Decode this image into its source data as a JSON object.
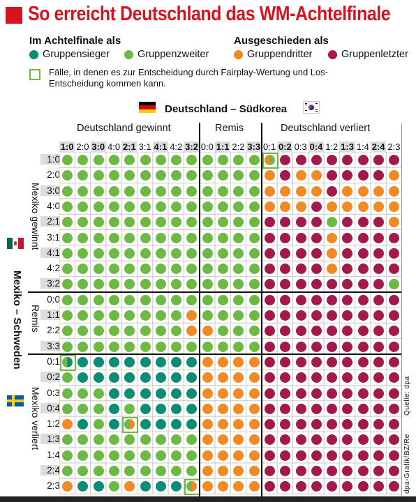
{
  "title": "So erreicht Deutschland das WM-Achtelfinale",
  "legend": {
    "in_heading": "Im Achtelfinale als",
    "out_heading": "Ausgeschieden als",
    "items": [
      {
        "label": "Gruppensieger",
        "color": "#0b8c74"
      },
      {
        "label": "Gruppenzweiter",
        "color": "#6cb944"
      },
      {
        "label": "Gruppendritter",
        "color": "#f08a24"
      },
      {
        "label": "Gruppenletzter",
        "color": "#a2194b"
      }
    ],
    "fairplay_text": "Fälle, in denen es zur Entscheidung durch Fairplay-Wertung und Los-Entscheidung kommen kann."
  },
  "match_top": "Deutschland – Südkorea",
  "match_side": "Mexiko – Schweden",
  "column_groups": [
    "Deutschland gewinnt",
    "Remis",
    "Deutschland verliert"
  ],
  "row_groups": [
    "Mexiko gewinnt",
    "Remis",
    "Mexiko verliert"
  ],
  "columns": [
    "1:0",
    "2:0",
    "3:0",
    "4:0",
    "2:1",
    "3:1",
    "4:1",
    "4:2",
    "3:2",
    "0:0",
    "1:1",
    "2:2",
    "3:3",
    "0:1",
    "0:2",
    "0:3",
    "0:4",
    "1:2",
    "1:3",
    "1:4",
    "2:4",
    "2:3"
  ],
  "columns_bold": [
    0,
    2,
    4,
    6,
    8,
    10,
    12,
    14,
    16,
    18,
    20
  ],
  "rows": [
    "1:0",
    "2:0",
    "3:0",
    "4:0",
    "2:1",
    "3:1",
    "4:1",
    "4:2",
    "3:2",
    "0:0",
    "1:1",
    "2:2",
    "3:3",
    "0:1",
    "0:2",
    "0:3",
    "0:4",
    "1:2",
    "1:3",
    "1:4",
    "2:4",
    "2:3"
  ],
  "rows_bold": [
    0,
    2,
    4,
    6,
    8,
    10,
    12,
    14,
    16,
    18,
    20
  ],
  "grid": [
    "ZZZZZZZZZZZZZFLLLLLLLL",
    "ZZZZZZZZZZZZZDLDDLLLLD",
    "ZZZZZZZZZZZZZDDDDLDDDD",
    "ZZZZZZZZZZZZZDDDLDDDDD",
    "ZZZZZZZZZZZZZLLLLZLLLD",
    "ZZZZZZZZZZZZZLLLLDLLLL",
    "ZZZZZZZZZZZZZLLLLDLLLL",
    "ZZZZZZZZZZZZZLLLLDLLLL",
    "ZZZZZZZZZZZZZLLLLLLLLZ",
    "ZZZZZZZZZZZZZLLLLLLLLL",
    "ZZZZZZZZDZZZZLLLLLLLLL",
    "ZZZZZZZZDDZZZLLLLLLLLL",
    "ZZZZZZZZZZZZZLLLLLLLLL",
    "FSSSSSSSSDDDDLLLLLLLLL",
    "ZSSSSSSSSDDDDLLLLLLLLL",
    "ZZZSSSSSSDDDDLLLLLLLLL",
    "ZZZSZSSSSDDDDLLLLLLLLL",
    "DSZSFSSSSDDDDLLLLLLLLL",
    "ZZZZZZZZZDDDDLLLLLLLLL",
    "ZZZZZZZZZDDDDLLLLLLLLL",
    "ZZZZZZZZZDDDDLLLLLLLLL",
    "DSSZDSSSFDDDDLLLLLLLLL"
  ],
  "credit_left": "dpa-Grafik/BZ/Re",
  "credit_right": "Quelle: dpa"
}
